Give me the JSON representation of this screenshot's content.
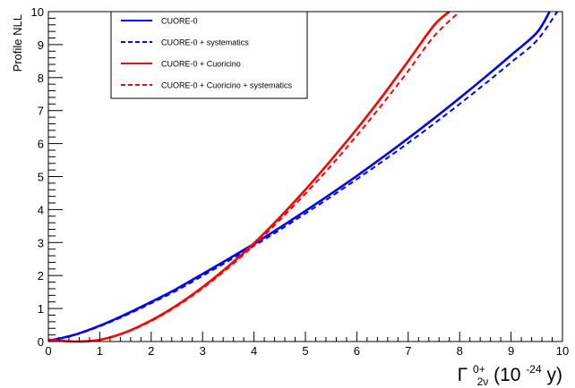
{
  "chart_data": {
    "type": "line",
    "title": "",
    "ylabel": "Profile NLL",
    "xlabel_parts": {
      "symbol": "Γ",
      "sup": "0+",
      "sub": "2ν",
      "unit_pre": "(10",
      "unit_exp": "-24",
      "unit_post": "y)"
    },
    "xlim": [
      0,
      10
    ],
    "ylim": [
      0,
      10
    ],
    "x_ticks": [
      "0",
      "1",
      "2",
      "3",
      "4",
      "5",
      "6",
      "7",
      "8",
      "9",
      "10"
    ],
    "y_ticks": [
      "0",
      "1",
      "2",
      "3",
      "4",
      "5",
      "6",
      "7",
      "8",
      "9",
      "10"
    ],
    "grid": false,
    "legend_position": "top-left",
    "series": [
      {
        "name": "CUORE-0",
        "color": "#0000ff",
        "style": "solid",
        "x": [
          0,
          0.5,
          1,
          1.5,
          2,
          2.5,
          3,
          3.5,
          4,
          4.5,
          5,
          5.5,
          6,
          6.5,
          7,
          7.5,
          8,
          8.5,
          9,
          9.5,
          9.75
        ],
        "y": [
          0.02,
          0.2,
          0.48,
          0.82,
          1.2,
          1.6,
          2.05,
          2.5,
          2.96,
          3.45,
          3.96,
          4.48,
          5.02,
          5.58,
          6.16,
          6.76,
          7.38,
          8.02,
          8.68,
          9.36,
          10
        ]
      },
      {
        "name": "CUORE-0 + systematics",
        "color": "#0000ff",
        "style": "dashed",
        "x": [
          0,
          0.5,
          1,
          1.5,
          2,
          2.5,
          3,
          3.5,
          4,
          4.5,
          5,
          5.5,
          6,
          6.5,
          7,
          7.5,
          8,
          8.5,
          9,
          9.5,
          9.9
        ],
        "y": [
          0.02,
          0.19,
          0.46,
          0.79,
          1.16,
          1.55,
          1.99,
          2.44,
          2.9,
          3.38,
          3.88,
          4.39,
          4.92,
          5.46,
          6.02,
          6.6,
          7.2,
          7.82,
          8.46,
          9.12,
          10
        ]
      },
      {
        "name": "CUORE-0 + Cuoricino",
        "color": "#ff0000",
        "style": "solid",
        "x": [
          0,
          0.5,
          1,
          1.5,
          2,
          2.5,
          3,
          3.5,
          4,
          4.5,
          5,
          5.5,
          6,
          6.5,
          7,
          7.5,
          7.8
        ],
        "y": [
          0.06,
          0.0,
          0.05,
          0.28,
          0.64,
          1.1,
          1.65,
          2.28,
          2.98,
          3.76,
          4.6,
          5.5,
          6.44,
          7.44,
          8.5,
          9.58,
          10
        ]
      },
      {
        "name": "CUORE-0 + Cuoricino + systematics",
        "color": "#ff0000",
        "style": "dashed",
        "x": [
          0,
          0.5,
          1,
          1.5,
          2,
          2.5,
          3,
          3.5,
          4,
          4.5,
          5,
          5.5,
          6,
          6.5,
          7,
          7.5,
          8
        ],
        "y": [
          0.06,
          0.0,
          0.05,
          0.27,
          0.62,
          1.07,
          1.61,
          2.23,
          2.92,
          3.68,
          4.48,
          5.33,
          6.24,
          7.2,
          8.2,
          9.25,
          10
        ]
      }
    ]
  }
}
